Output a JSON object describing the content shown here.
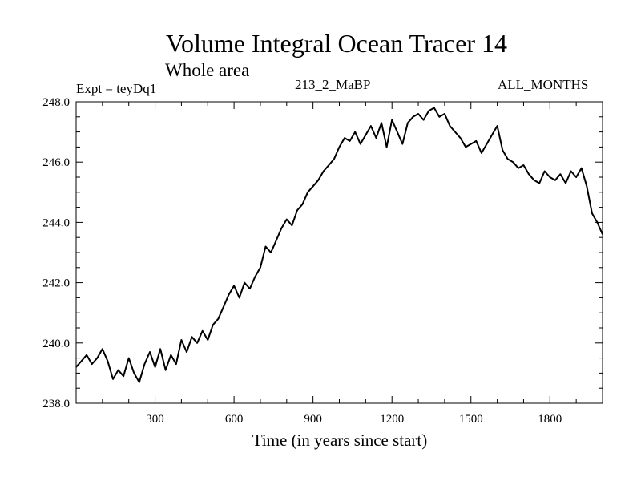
{
  "chart_data": {
    "type": "line",
    "title": "Volume Integral Ocean Tracer 14",
    "subtitle": "Whole area",
    "experiment_label": "Expt = teyDq1",
    "period_label": "213_2_MaBP",
    "months_label": "ALL_MONTHS",
    "xlabel": "Time (in years since start)",
    "ylabel": "",
    "xlim": [
      0,
      2000
    ],
    "ylim": [
      238.0,
      248.0
    ],
    "x_ticks": [
      300,
      600,
      900,
      1200,
      1500,
      1800
    ],
    "x_tick_labels": [
      "300",
      "600",
      "900",
      "1200",
      "1500",
      "1800"
    ],
    "y_ticks": [
      238.0,
      240.0,
      242.0,
      244.0,
      246.0,
      248.0
    ],
    "y_tick_labels": [
      "238.0",
      "240.0",
      "242.0",
      "244.0",
      "246.0",
      "248.0"
    ],
    "series": [
      {
        "name": "Volume Integral Ocean Tracer 14",
        "color": "#000000",
        "x": [
          0,
          20,
          40,
          60,
          80,
          100,
          120,
          140,
          160,
          180,
          200,
          220,
          240,
          260,
          280,
          300,
          320,
          340,
          360,
          380,
          400,
          420,
          440,
          460,
          480,
          500,
          520,
          540,
          560,
          580,
          600,
          620,
          640,
          660,
          680,
          700,
          720,
          740,
          760,
          780,
          800,
          820,
          840,
          860,
          880,
          900,
          920,
          940,
          960,
          980,
          1000,
          1020,
          1040,
          1060,
          1080,
          1100,
          1120,
          1140,
          1160,
          1180,
          1200,
          1220,
          1240,
          1260,
          1280,
          1300,
          1320,
          1340,
          1360,
          1380,
          1400,
          1420,
          1440,
          1460,
          1480,
          1500,
          1520,
          1540,
          1560,
          1580,
          1600,
          1620,
          1640,
          1660,
          1680,
          1700,
          1720,
          1740,
          1760,
          1780,
          1800,
          1820,
          1840,
          1860,
          1880,
          1900,
          1920,
          1940,
          1960,
          1980,
          2000
        ],
        "values": [
          239.2,
          239.4,
          239.6,
          239.3,
          239.5,
          239.8,
          239.4,
          238.8,
          239.1,
          238.9,
          239.5,
          239.0,
          238.7,
          239.3,
          239.7,
          239.2,
          239.8,
          239.1,
          239.6,
          239.3,
          240.1,
          239.7,
          240.2,
          240.0,
          240.4,
          240.1,
          240.6,
          240.8,
          241.2,
          241.6,
          241.9,
          241.5,
          242.0,
          241.8,
          242.2,
          242.5,
          243.2,
          243.0,
          243.4,
          243.8,
          244.1,
          243.9,
          244.4,
          244.6,
          245.0,
          245.2,
          245.4,
          245.7,
          245.9,
          246.1,
          246.5,
          246.8,
          246.7,
          247.0,
          246.6,
          246.9,
          247.2,
          246.8,
          247.3,
          246.5,
          247.4,
          247.0,
          246.6,
          247.3,
          247.5,
          247.6,
          247.4,
          247.7,
          247.8,
          247.5,
          247.6,
          247.2,
          247.0,
          246.8,
          246.5,
          246.6,
          246.7,
          246.3,
          246.6,
          246.9,
          247.2,
          246.4,
          246.1,
          246.0,
          245.8,
          245.9,
          245.6,
          245.4,
          245.3,
          245.7,
          245.5,
          245.4,
          245.6,
          245.3,
          245.7,
          245.5,
          245.8,
          245.2,
          244.3,
          244.0,
          243.6
        ]
      }
    ]
  }
}
